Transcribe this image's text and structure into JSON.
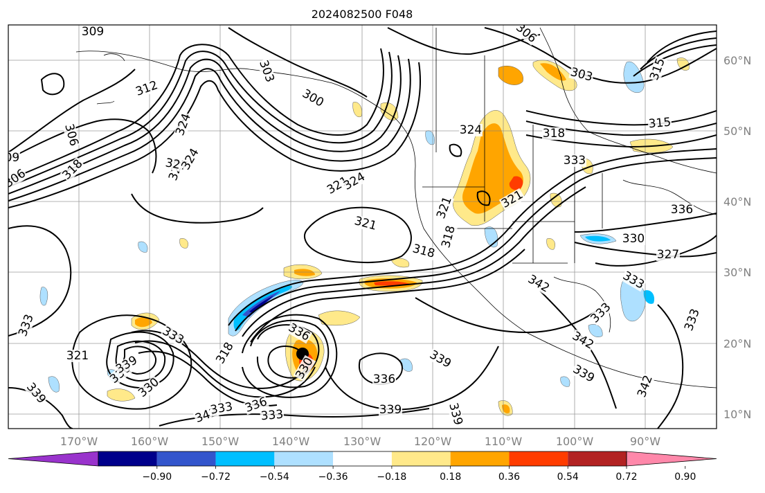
{
  "title": "2024082500 F048",
  "axes": {
    "lon_labels": [
      "170°W",
      "160°W",
      "150°W",
      "140°W",
      "130°W",
      "120°W",
      "110°W",
      "100°W",
      "90°W"
    ],
    "lat_labels": [
      "60°N",
      "50°N",
      "40°N",
      "30°N",
      "20°N",
      "10°N"
    ],
    "lon_range": [
      -180,
      -80
    ],
    "lat_range": [
      8,
      66
    ]
  },
  "colorbar": {
    "tick_labels": [
      "−0.90",
      "−0.72",
      "−0.54",
      "−0.36",
      "−0.18",
      "0.18",
      "0.36",
      "0.54",
      "0.72",
      "0.90"
    ],
    "colors": [
      "#9933cc",
      "#00008b",
      "#3355cc",
      "#00bfff",
      "#aee0ff",
      "#ffffff",
      "#ffe98a",
      "#ffa500",
      "#ff3c00",
      "#b22222",
      "#ff88aa"
    ],
    "extend": "both"
  },
  "contour_labels": [
    {
      "text": "309"
    },
    {
      "text": "306"
    },
    {
      "text": "303"
    },
    {
      "text": "300"
    },
    {
      "text": "312"
    },
    {
      "text": "309"
    },
    {
      "text": "306"
    },
    {
      "text": "318"
    },
    {
      "text": "324"
    },
    {
      "text": "321"
    },
    {
      "text": "327"
    },
    {
      "text": "324"
    },
    {
      "text": "321"
    },
    {
      "text": "324"
    },
    {
      "text": "321"
    },
    {
      "text": "318"
    },
    {
      "text": "321"
    },
    {
      "text": "324"
    },
    {
      "text": "321"
    },
    {
      "text": "318"
    },
    {
      "text": "306"
    },
    {
      "text": "303"
    },
    {
      "text": "315"
    },
    {
      "text": "318"
    },
    {
      "text": "315"
    },
    {
      "text": "333"
    },
    {
      "text": "336"
    },
    {
      "text": "330"
    },
    {
      "text": "327"
    },
    {
      "text": "333"
    },
    {
      "text": "342"
    },
    {
      "text": "333"
    },
    {
      "text": "342"
    },
    {
      "text": "339"
    },
    {
      "text": "342"
    },
    {
      "text": "333"
    },
    {
      "text": "333"
    },
    {
      "text": "321"
    },
    {
      "text": "336"
    },
    {
      "text": "330"
    },
    {
      "text": "339"
    },
    {
      "text": "318"
    },
    {
      "text": "336"
    },
    {
      "text": "339"
    },
    {
      "text": "336"
    },
    {
      "text": "339"
    },
    {
      "text": "339"
    },
    {
      "text": "342"
    },
    {
      "text": "333"
    },
    {
      "text": "339"
    },
    {
      "text": "336"
    },
    {
      "text": "333"
    },
    {
      "text": "333"
    },
    {
      "text": "330"
    }
  ],
  "center_marker": {
    "lon": -138,
    "lat": 18.5
  }
}
